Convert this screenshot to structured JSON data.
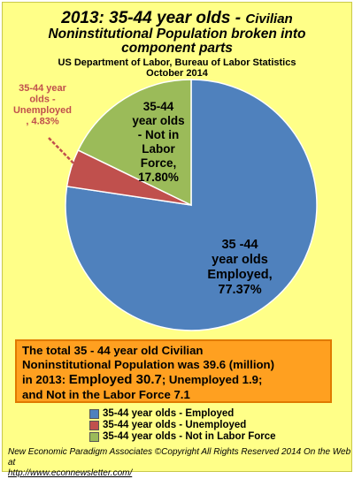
{
  "header": {
    "title_main": "2013:  35-44 year olds",
    "title_sep": " - ",
    "title_tail": "Civilian",
    "title_line2": "Noninstitutional  Population broken into",
    "title_line3": "component parts",
    "source": "US Department of Labor, Bureau of Labor Statistics",
    "date": "October 2014"
  },
  "chart_data": {
    "type": "pie",
    "title": "2013:  35-44 year olds - Civilian Noninstitutional  Population broken into component parts",
    "slices": [
      {
        "name": "35-44 year olds - Employed",
        "value": 77.37,
        "color": "#4f81bd",
        "label_lines": [
          "35 -44",
          "year olds",
          "Employed,",
          "77.37%"
        ]
      },
      {
        "name": "35-44 year olds - Unemployed",
        "value": 4.83,
        "color": "#c0504d",
        "label_lines": [
          "35-44 year",
          "olds -",
          "Unemployed",
          ", 4.83%"
        ]
      },
      {
        "name": "35-44 year olds - Not in Labor Force",
        "value": 17.8,
        "color": "#9bbb59",
        "label_lines": [
          "35-44",
          "year olds",
          "- Not in",
          "Labor",
          "Force,",
          "17.80%"
        ]
      }
    ]
  },
  "summary": {
    "line1": "The total 35 - 44 year old Civilian",
    "line2": "Noninstitutional Population was 39.6 (million)",
    "line3a": "in 2013:  ",
    "line3b": "Employed 30.7",
    "line3c": "; Unemployed 1.9;",
    "line4": "and Not in the Labor Force 7.1"
  },
  "legend": [
    {
      "label": "35-44 year olds - Employed",
      "color": "#4f81bd"
    },
    {
      "label": "35-44 year olds - Unemployed",
      "color": "#c0504d"
    },
    {
      "label": "35-44 year olds - Not in Labor Force",
      "color": "#9bbb59"
    }
  ],
  "footer": {
    "line1": "New Economic Paradigm Associates  ©Copyright All Rights Reserved 2014 On the Web at",
    "url": "http://www.econnewsletter.com/"
  }
}
